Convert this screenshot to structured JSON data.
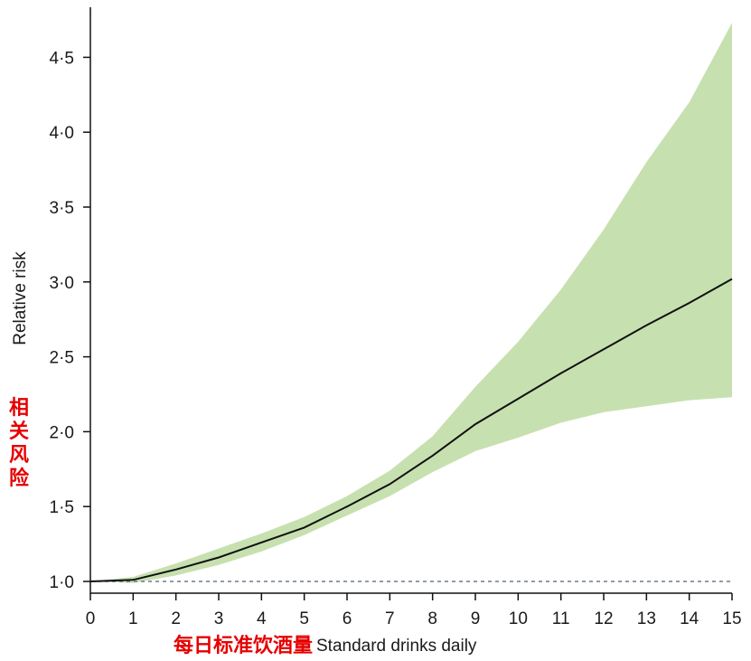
{
  "chart_data": {
    "type": "line",
    "title": "",
    "xlabel": "Standard drinks daily",
    "xlabel_cn": "每日标准饮酒量",
    "ylabel": "Relative risk",
    "ylabel_cn": "相关风险",
    "xlim": [
      0,
      15
    ],
    "ylim": [
      1.0,
      4.75
    ],
    "x_ticks": [
      0,
      1,
      2,
      3,
      4,
      5,
      6,
      7,
      8,
      9,
      10,
      11,
      12,
      13,
      14,
      15
    ],
    "x_tick_labels": [
      "0",
      "1",
      "2",
      "3",
      "4",
      "5",
      "6",
      "7",
      "8",
      "9",
      "10",
      "11",
      "12",
      "13",
      "14",
      "15"
    ],
    "y_ticks": [
      1.0,
      1.5,
      2.0,
      2.5,
      3.0,
      3.5,
      4.0,
      4.5
    ],
    "y_tick_labels": [
      "1·0",
      "1·5",
      "2·0",
      "2·5",
      "3·0",
      "3·5",
      "4·0",
      "4·5"
    ],
    "reference_line": {
      "y": 1.0,
      "style": "dashed",
      "color": "#6b7b8c"
    },
    "grid": false,
    "colors": {
      "line": "#111111",
      "band": "#c7e0b0",
      "axis": "#111111"
    },
    "series": [
      {
        "x": [
          0,
          1,
          2,
          3,
          4,
          5,
          6,
          7,
          8,
          9,
          10,
          11,
          12,
          13,
          14,
          15
        ],
        "y": [
          1.0,
          1.01,
          1.08,
          1.16,
          1.26,
          1.36,
          1.5,
          1.65,
          1.84,
          2.05,
          2.22,
          2.39,
          2.55,
          2.71,
          2.86,
          3.02
        ],
        "lower": [
          1.0,
          0.99,
          1.04,
          1.11,
          1.2,
          1.31,
          1.44,
          1.57,
          1.73,
          1.87,
          1.96,
          2.06,
          2.13,
          2.17,
          2.21,
          2.23
        ],
        "upper": [
          1.0,
          1.03,
          1.12,
          1.22,
          1.32,
          1.43,
          1.57,
          1.74,
          1.97,
          2.3,
          2.6,
          2.95,
          3.35,
          3.8,
          4.2,
          4.73
        ]
      }
    ]
  }
}
